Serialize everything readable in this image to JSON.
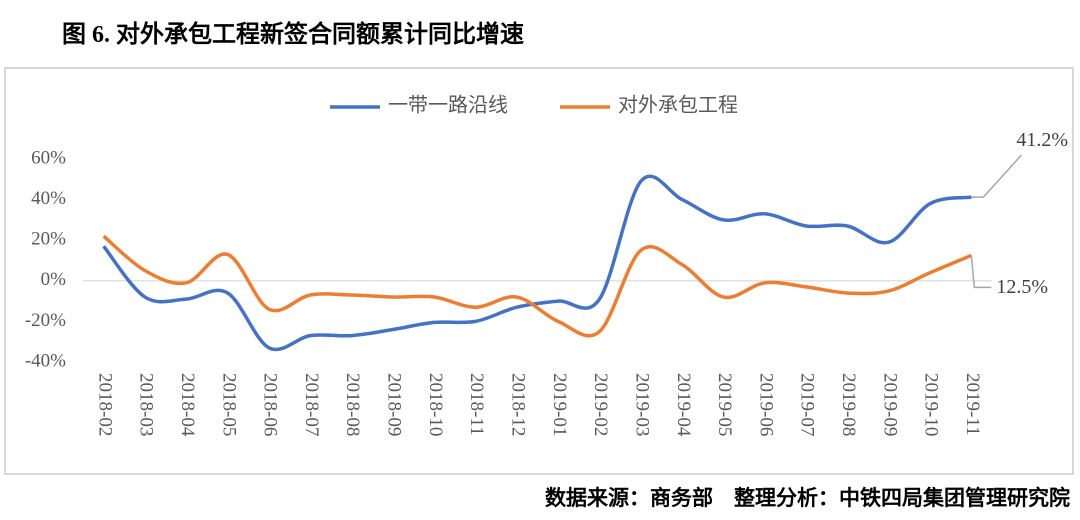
{
  "chart_data": {
    "type": "line",
    "title": "图 6. 对外承包工程新签合同额累计同比增速",
    "source": "数据来源：商务部　整理分析：中铁四局集团管理研究院",
    "categories": [
      "2018-02",
      "2018-03",
      "2018-04",
      "2018-05",
      "2018-06",
      "2018-07",
      "2018-08",
      "2018-09",
      "2018-10",
      "2018-11",
      "2018-12",
      "2019-01",
      "2019-02",
      "2019-03",
      "2019-04",
      "2019-05",
      "2019-06",
      "2019-07",
      "2019-08",
      "2019-09",
      "2019-10",
      "2019-11"
    ],
    "series": [
      {
        "name": "一带一路沿线",
        "color": "#4472c4",
        "values": [
          17,
          -8,
          -9,
          -6,
          -33,
          -27,
          -27,
          -24,
          -20.5,
          -20,
          -13,
          -10,
          -9,
          49,
          40,
          30,
          33,
          27,
          27,
          19,
          38,
          41.2
        ],
        "value_labels": [
          null,
          null,
          null,
          null,
          null,
          null,
          null,
          null,
          null,
          null,
          null,
          null,
          null,
          null,
          null,
          null,
          null,
          null,
          null,
          null,
          null,
          "41.2%"
        ]
      },
      {
        "name": "对外承包工程",
        "color": "#ed7d31",
        "values": [
          22,
          5,
          -1,
          13,
          -14,
          -7,
          -7,
          -8,
          -8,
          -13,
          -8,
          -20,
          -25,
          15,
          8,
          -8,
          -1,
          -3,
          -6,
          -5,
          4,
          12.5
        ],
        "value_labels": [
          null,
          null,
          null,
          null,
          null,
          null,
          null,
          null,
          null,
          null,
          null,
          null,
          null,
          null,
          null,
          null,
          null,
          null,
          null,
          null,
          null,
          "12.5%"
        ]
      }
    ],
    "ylim": [
      -40,
      60
    ],
    "yticks": [
      {
        "value": -40,
        "label": "-40%"
      },
      {
        "value": -20,
        "label": "-20%"
      },
      {
        "value": 0,
        "label": "0%"
      },
      {
        "value": 20,
        "label": "20%"
      },
      {
        "value": 40,
        "label": "40%"
      },
      {
        "value": 60,
        "label": "60%"
      }
    ],
    "grid": false,
    "legend": "top"
  }
}
